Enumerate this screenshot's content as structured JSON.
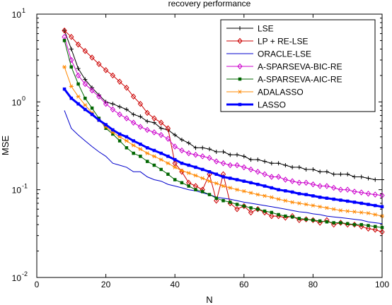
{
  "chart_data": {
    "type": "line",
    "title": "recovery performance",
    "xlabel": "N",
    "ylabel": "MSE",
    "xlim": [
      0,
      100
    ],
    "ylim": [
      0.01,
      10
    ],
    "yscale": "log",
    "xticks": [
      0,
      20,
      40,
      60,
      80,
      100
    ],
    "xtick_labels": [
      "0",
      "20",
      "40",
      "60",
      "80",
      "100"
    ],
    "yticks": [
      0.01,
      0.1,
      1,
      10
    ],
    "ytick_labels": [
      {
        "base": "10",
        "exp": "-2"
      },
      {
        "base": "10",
        "exp": "-1"
      },
      {
        "base": "10",
        "exp": "0"
      },
      {
        "base": "10",
        "exp": "1"
      }
    ],
    "grid": false,
    "legend_position": "top-right",
    "x": [
      8,
      10,
      12,
      14,
      16,
      18,
      20,
      22,
      24,
      26,
      28,
      30,
      32,
      34,
      36,
      38,
      40,
      42,
      44,
      46,
      48,
      50,
      52,
      54,
      56,
      58,
      60,
      62,
      64,
      66,
      68,
      70,
      72,
      74,
      76,
      78,
      80,
      82,
      84,
      86,
      88,
      90,
      92,
      94,
      96,
      98,
      100
    ],
    "series": [
      {
        "name": "LSE",
        "color": "#000000",
        "marker": "plus",
        "line_width": 1,
        "values": [
          6.5,
          4.0,
          2.4,
          1.8,
          1.45,
          1.2,
          1.0,
          0.95,
          0.88,
          0.82,
          0.72,
          0.68,
          0.6,
          0.58,
          0.5,
          0.48,
          0.42,
          0.37,
          0.34,
          0.3,
          0.3,
          0.29,
          0.27,
          0.27,
          0.25,
          0.25,
          0.24,
          0.22,
          0.22,
          0.21,
          0.2,
          0.2,
          0.19,
          0.18,
          0.18,
          0.17,
          0.17,
          0.16,
          0.16,
          0.15,
          0.15,
          0.15,
          0.14,
          0.14,
          0.135,
          0.13,
          0.13
        ]
      },
      {
        "name": "LP + RE-LSE",
        "color": "#cc0000",
        "marker": "diamond",
        "line_width": 1,
        "values": [
          6.5,
          5.5,
          4.5,
          3.8,
          3.2,
          2.7,
          2.3,
          2.0,
          1.7,
          1.45,
          1.15,
          0.95,
          0.75,
          0.65,
          0.58,
          0.5,
          0.2,
          0.16,
          0.12,
          0.11,
          0.1,
          0.15,
          0.075,
          0.15,
          0.07,
          0.06,
          0.065,
          0.055,
          0.06,
          0.055,
          0.05,
          0.05,
          0.048,
          0.05,
          0.045,
          0.046,
          0.045,
          0.042,
          0.045,
          0.04,
          0.042,
          0.04,
          0.04,
          0.038,
          0.036,
          0.035,
          0.033
        ]
      },
      {
        "name": "ORACLE-LSE",
        "color": "#0000cc",
        "marker": "none",
        "line_width": 1,
        "values": [
          0.8,
          0.5,
          0.42,
          0.36,
          0.31,
          0.27,
          0.24,
          0.2,
          0.19,
          0.18,
          0.16,
          0.16,
          0.14,
          0.13,
          0.125,
          0.115,
          0.11,
          0.105,
          0.1,
          0.097,
          0.092,
          0.088,
          0.082,
          0.08,
          0.078,
          0.075,
          0.072,
          0.07,
          0.068,
          0.066,
          0.064,
          0.062,
          0.06,
          0.058,
          0.056,
          0.055,
          0.053,
          0.052,
          0.05,
          0.049,
          0.048,
          0.047,
          0.046,
          0.045,
          0.043,
          0.042,
          0.041
        ]
      },
      {
        "name": "A-SPARSEVA-BIC-RE",
        "color": "#cc00cc",
        "marker": "diamond",
        "line_width": 1,
        "values": [
          5.5,
          3.0,
          2.0,
          1.6,
          1.35,
          1.15,
          0.95,
          0.82,
          0.72,
          0.65,
          0.58,
          0.52,
          0.48,
          0.45,
          0.42,
          0.38,
          0.31,
          0.28,
          0.26,
          0.25,
          0.24,
          0.23,
          0.21,
          0.2,
          0.19,
          0.19,
          0.18,
          0.17,
          0.16,
          0.15,
          0.14,
          0.14,
          0.13,
          0.125,
          0.12,
          0.12,
          0.115,
          0.11,
          0.11,
          0.105,
          0.1,
          0.1,
          0.095,
          0.093,
          0.09,
          0.088,
          0.086
        ]
      },
      {
        "name": "A-SPARSEVA-AIC-RE",
        "color": "#006600",
        "marker": "square",
        "line_width": 1,
        "values": [
          5.0,
          2.5,
          1.6,
          1.1,
          0.85,
          0.65,
          0.5,
          0.43,
          0.36,
          0.3,
          0.26,
          0.24,
          0.21,
          0.19,
          0.17,
          0.15,
          0.13,
          0.12,
          0.11,
          0.1,
          0.095,
          0.088,
          0.08,
          0.075,
          0.072,
          0.068,
          0.065,
          0.062,
          0.06,
          0.057,
          0.055,
          0.052,
          0.05,
          0.049,
          0.047,
          0.046,
          0.045,
          0.044,
          0.043,
          0.042,
          0.042,
          0.041,
          0.04,
          0.04,
          0.039,
          0.038,
          0.037
        ]
      },
      {
        "name": "ADALASSO",
        "color": "#ff8800",
        "marker": "asterisk",
        "line_width": 1,
        "values": [
          2.5,
          1.5,
          1.15,
          0.92,
          0.75,
          0.62,
          0.52,
          0.45,
          0.4,
          0.36,
          0.32,
          0.29,
          0.26,
          0.24,
          0.22,
          0.2,
          0.18,
          0.165,
          0.155,
          0.145,
          0.135,
          0.125,
          0.118,
          0.11,
          0.105,
          0.1,
          0.096,
          0.092,
          0.088,
          0.085,
          0.082,
          0.078,
          0.075,
          0.072,
          0.07,
          0.068,
          0.066,
          0.064,
          0.062,
          0.06,
          0.058,
          0.057,
          0.056,
          0.055,
          0.054,
          0.052,
          0.05
        ]
      },
      {
        "name": "LASSO",
        "color": "#0000ff",
        "marker": "square",
        "line_width": 3,
        "values": [
          1.4,
          1.1,
          0.95,
          0.82,
          0.72,
          0.62,
          0.55,
          0.48,
          0.43,
          0.4,
          0.36,
          0.33,
          0.3,
          0.28,
          0.26,
          0.24,
          0.22,
          0.2,
          0.19,
          0.18,
          0.17,
          0.16,
          0.15,
          0.14,
          0.135,
          0.13,
          0.125,
          0.12,
          0.115,
          0.11,
          0.105,
          0.1,
          0.097,
          0.094,
          0.09,
          0.088,
          0.085,
          0.082,
          0.08,
          0.078,
          0.076,
          0.074,
          0.072,
          0.07,
          0.068,
          0.066,
          0.064
        ]
      }
    ]
  }
}
